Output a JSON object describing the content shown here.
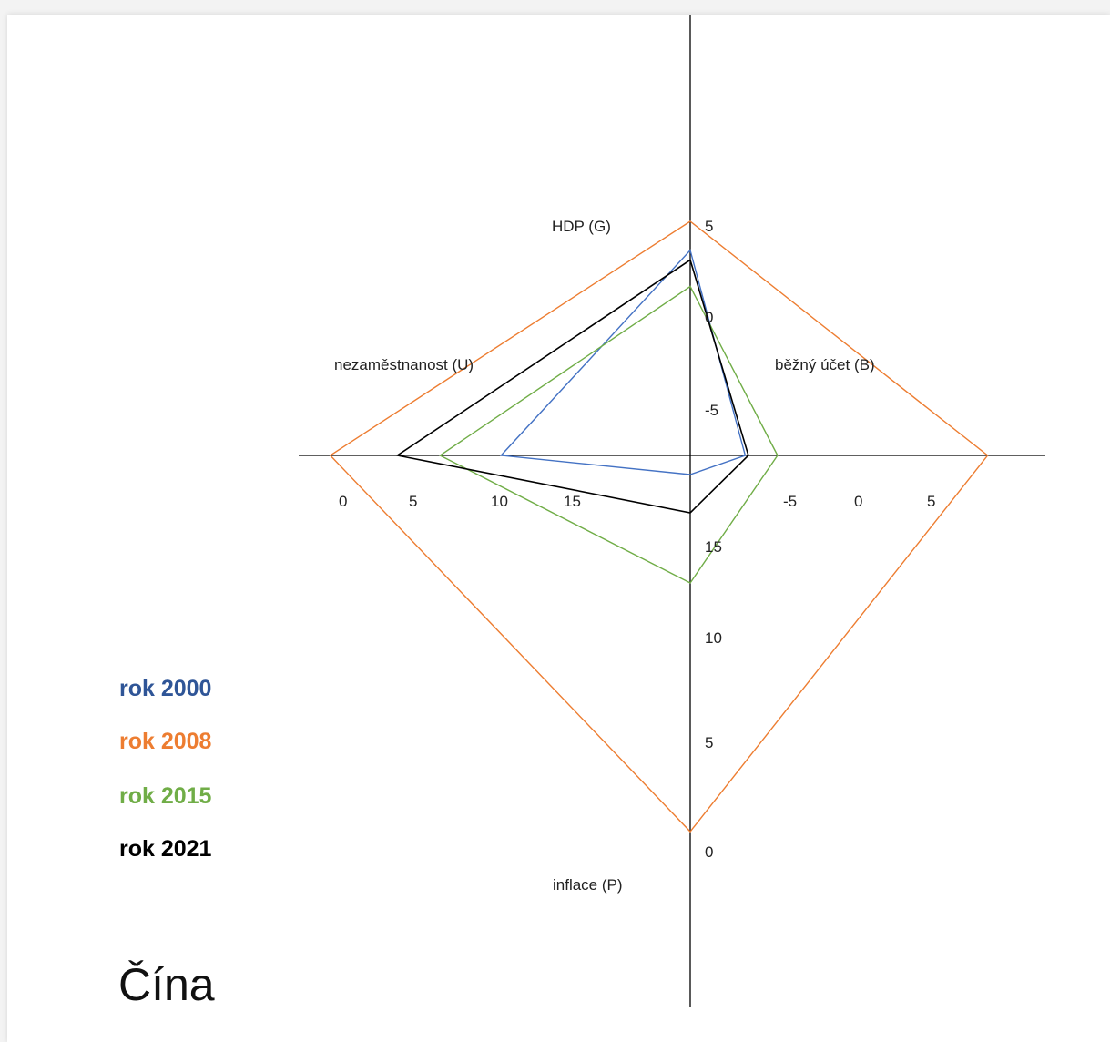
{
  "country_title": "Čína",
  "chart_data": {
    "type": "radar",
    "axes": [
      {
        "key": "G",
        "label": "HDP (G)",
        "ticks": [
          "5",
          "0",
          "-5"
        ]
      },
      {
        "key": "B",
        "label": "běžný účet (B)",
        "ticks": [
          "-5",
          "0",
          "5"
        ]
      },
      {
        "key": "P",
        "label": "inflace (P)",
        "ticks": [
          "15",
          "10",
          "5",
          "0"
        ]
      },
      {
        "key": "U",
        "label": "nezaměstnanost (U)",
        "ticks": [
          "0",
          "5",
          "10",
          "15"
        ]
      }
    ],
    "series": [
      {
        "name": "rok 2000",
        "color": "#4472C4",
        "legend_color": "#2F5597",
        "values": {
          "G": 8.5,
          "B": 1.7,
          "P": 0.3,
          "U": 3.1
        }
      },
      {
        "name": "rok 2008",
        "color": "#ED7D31",
        "legend_color": "#ED7D31",
        "values": {
          "G": 9.7,
          "B": 9.2,
          "P": 5.9,
          "U": 5.9
        }
      },
      {
        "name": "rok 2015",
        "color": "#70AD47",
        "legend_color": "#70AD47",
        "values": {
          "G": 7.0,
          "B": 2.7,
          "P": 2.0,
          "U": 4.1
        }
      },
      {
        "name": "rok 2021",
        "color": "#000000",
        "legend_color": "#000000",
        "values": {
          "G": 8.1,
          "B": 1.8,
          "P": 0.9,
          "U": 4.8
        }
      }
    ]
  }
}
